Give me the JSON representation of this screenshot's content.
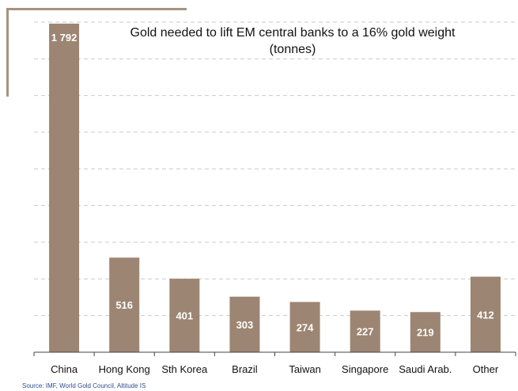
{
  "chart_data": {
    "type": "bar",
    "title_line1": "Gold needed to lift EM central banks to a 16% gold weight",
    "title_line2": "(tonnes)",
    "categories": [
      "China",
      "Hong Kong",
      "Sth Korea",
      "Brazil",
      "Taiwan",
      "Singapore",
      "Saudi Arab.",
      "Other"
    ],
    "values": [
      1792,
      516,
      401,
      303,
      274,
      227,
      219,
      412
    ],
    "value_labels": [
      "1 792",
      "516",
      "401",
      "303",
      "274",
      "227",
      "219",
      "412"
    ],
    "xlabel": "",
    "ylabel": "",
    "ylim": [
      0,
      1800
    ],
    "grid": true,
    "bar_color": "#9c8572",
    "label_color": "#ffffff"
  },
  "source": "Source: IMF, World Gold Council, Altitude IS"
}
